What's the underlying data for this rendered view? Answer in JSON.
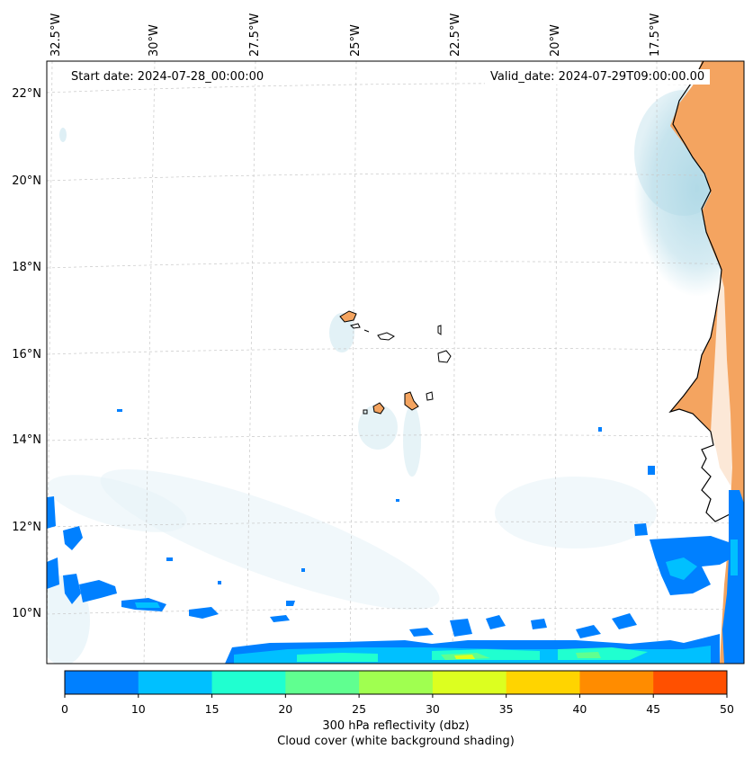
{
  "map": {
    "start_date": "Start date: 2024-07-28_00:00:00",
    "valid_date": "Valid_date: 2024-07-29T09:00:00.00",
    "lon_labels": [
      "32.5°W",
      "30°W",
      "27.5°W",
      "25°W",
      "22.5°W",
      "20°W",
      "17.5°W"
    ],
    "lat_labels": [
      "22°N",
      "20°N",
      "18°N",
      "16°N",
      "14°N",
      "12°N",
      "10°N"
    ],
    "land_color": "#f4a460",
    "cloud_color": "#add8e6",
    "coastline_color": "#000000"
  },
  "colorbar": {
    "ticks": [
      "0",
      "10",
      "15",
      "20",
      "25",
      "30",
      "35",
      "40",
      "45",
      "50"
    ],
    "colors": [
      "#0080ff",
      "#00c0ff",
      "#20ffd0",
      "#60ff90",
      "#a0ff50",
      "#dcff20",
      "#ffd400",
      "#ff8c00",
      "#ff5000"
    ],
    "label_line1": "300 hPa reflectivity (dbz)",
    "label_line2": "Cloud cover (white background shading)"
  }
}
